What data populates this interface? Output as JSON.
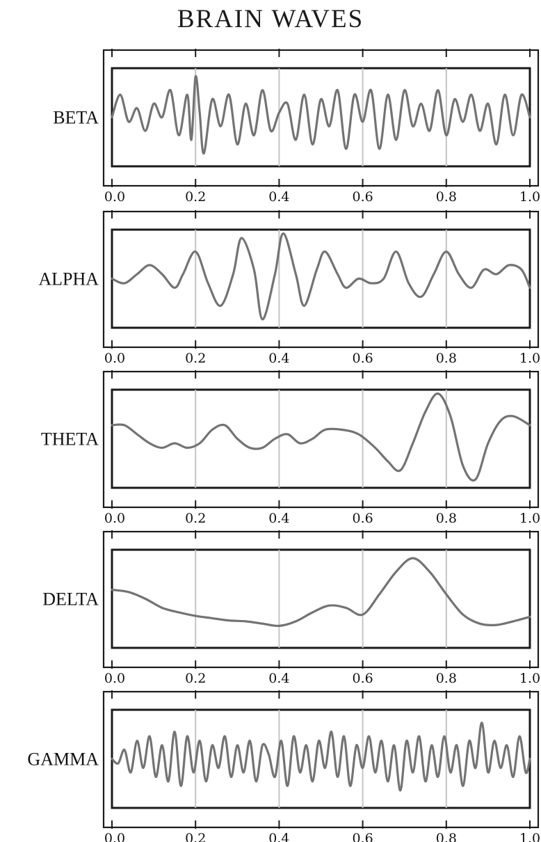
{
  "chart_data": {
    "type": "line",
    "title": "BRAIN WAVES",
    "x_ticks": [
      "0.0",
      "0.2",
      "0.4",
      "0.6",
      "0.8",
      "1.0"
    ],
    "xlim": [
      0,
      1
    ],
    "grid": true,
    "line_color": "#737373",
    "grid_color": "#c4c4c4",
    "frame_color": "#1a1a1a",
    "series": [
      {
        "name": "BETA",
        "x": [
          0.0,
          0.02,
          0.04,
          0.06,
          0.08,
          0.1,
          0.12,
          0.14,
          0.16,
          0.18,
          0.19,
          0.2,
          0.21,
          0.22,
          0.24,
          0.26,
          0.28,
          0.3,
          0.32,
          0.34,
          0.36,
          0.38,
          0.4,
          0.42,
          0.44,
          0.46,
          0.48,
          0.5,
          0.52,
          0.54,
          0.56,
          0.58,
          0.6,
          0.62,
          0.64,
          0.66,
          0.68,
          0.7,
          0.72,
          0.74,
          0.76,
          0.78,
          0.8,
          0.82,
          0.84,
          0.86,
          0.88,
          0.9,
          0.92,
          0.94,
          0.96,
          0.98,
          1.0
        ],
        "y": [
          0.0,
          0.5,
          -0.1,
          0.2,
          -0.3,
          0.3,
          0.0,
          0.6,
          -0.4,
          0.5,
          -0.5,
          0.9,
          0.1,
          -0.8,
          0.4,
          -0.2,
          0.5,
          -0.6,
          0.3,
          -0.4,
          0.6,
          -0.3,
          0.1,
          0.3,
          -0.5,
          0.5,
          -0.6,
          0.4,
          -0.2,
          0.6,
          -0.7,
          0.5,
          -0.1,
          0.6,
          -0.7,
          0.5,
          -0.5,
          0.6,
          -0.2,
          0.3,
          -0.3,
          0.6,
          -0.4,
          0.4,
          -0.1,
          0.5,
          -0.3,
          0.3,
          -0.6,
          0.5,
          -0.4,
          0.5,
          0.0
        ]
      },
      {
        "name": "ALPHA",
        "x": [
          0.0,
          0.03,
          0.06,
          0.09,
          0.12,
          0.15,
          0.17,
          0.2,
          0.23,
          0.26,
          0.29,
          0.31,
          0.34,
          0.36,
          0.39,
          0.41,
          0.44,
          0.46,
          0.49,
          0.51,
          0.54,
          0.56,
          0.59,
          0.62,
          0.65,
          0.68,
          0.71,
          0.74,
          0.77,
          0.8,
          0.83,
          0.86,
          0.89,
          0.92,
          0.95,
          0.98,
          1.0
        ],
        "y": [
          0.0,
          -0.1,
          0.1,
          0.3,
          0.1,
          -0.2,
          0.1,
          0.6,
          -0.1,
          -0.6,
          0.1,
          0.9,
          0.2,
          -0.9,
          0.1,
          1.0,
          0.1,
          -0.6,
          0.2,
          0.6,
          0.1,
          -0.2,
          0.0,
          -0.1,
          0.0,
          0.6,
          -0.1,
          -0.4,
          0.1,
          0.6,
          0.1,
          -0.2,
          0.2,
          0.1,
          0.3,
          0.2,
          -0.2
        ]
      },
      {
        "name": "THETA",
        "x": [
          0.0,
          0.03,
          0.06,
          0.09,
          0.12,
          0.15,
          0.18,
          0.21,
          0.24,
          0.27,
          0.3,
          0.33,
          0.36,
          0.39,
          0.42,
          0.45,
          0.48,
          0.51,
          0.55,
          0.59,
          0.63,
          0.66,
          0.69,
          0.72,
          0.75,
          0.78,
          0.81,
          0.84,
          0.87,
          0.9,
          0.93,
          0.96,
          1.0
        ],
        "y": [
          0.3,
          0.3,
          0.1,
          -0.1,
          -0.2,
          -0.1,
          -0.2,
          -0.1,
          0.2,
          0.3,
          0.0,
          -0.2,
          -0.2,
          0.0,
          0.1,
          -0.1,
          0.0,
          0.2,
          0.2,
          0.1,
          -0.2,
          -0.5,
          -0.7,
          -0.1,
          0.6,
          1.0,
          0.5,
          -0.6,
          -0.9,
          -0.1,
          0.4,
          0.5,
          0.3
        ]
      },
      {
        "name": "DELTA",
        "x": [
          0.0,
          0.04,
          0.08,
          0.12,
          0.16,
          0.2,
          0.24,
          0.28,
          0.32,
          0.36,
          0.4,
          0.44,
          0.48,
          0.52,
          0.56,
          0.6,
          0.64,
          0.68,
          0.72,
          0.76,
          0.8,
          0.84,
          0.88,
          0.92,
          0.96,
          1.0
        ],
        "y": [
          0.2,
          0.15,
          0.0,
          -0.2,
          -0.3,
          -0.38,
          -0.43,
          -0.48,
          -0.5,
          -0.55,
          -0.6,
          -0.5,
          -0.3,
          -0.15,
          -0.2,
          -0.35,
          0.1,
          0.6,
          0.9,
          0.6,
          0.1,
          -0.35,
          -0.55,
          -0.58,
          -0.5,
          -0.4
        ]
      },
      {
        "name": "GAMMA",
        "x": [
          0.0,
          0.015,
          0.03,
          0.045,
          0.06,
          0.075,
          0.09,
          0.105,
          0.12,
          0.135,
          0.15,
          0.165,
          0.18,
          0.195,
          0.21,
          0.225,
          0.24,
          0.255,
          0.27,
          0.285,
          0.3,
          0.315,
          0.33,
          0.345,
          0.36,
          0.375,
          0.39,
          0.405,
          0.42,
          0.435,
          0.45,
          0.465,
          0.48,
          0.495,
          0.51,
          0.525,
          0.54,
          0.555,
          0.57,
          0.585,
          0.6,
          0.615,
          0.63,
          0.645,
          0.66,
          0.675,
          0.69,
          0.705,
          0.72,
          0.735,
          0.75,
          0.765,
          0.78,
          0.795,
          0.81,
          0.825,
          0.84,
          0.855,
          0.87,
          0.885,
          0.9,
          0.915,
          0.93,
          0.945,
          0.96,
          0.975,
          0.99,
          1.0
        ],
        "y": [
          0.0,
          -0.1,
          0.2,
          -0.3,
          0.4,
          -0.2,
          0.5,
          -0.4,
          0.3,
          -0.5,
          0.6,
          -0.6,
          0.5,
          -0.3,
          0.4,
          -0.5,
          0.3,
          -0.2,
          0.5,
          -0.4,
          0.3,
          -0.3,
          0.4,
          -0.5,
          0.3,
          0.1,
          -0.4,
          0.4,
          -0.6,
          0.5,
          -0.3,
          0.3,
          -0.5,
          0.4,
          -0.2,
          0.6,
          -0.4,
          0.5,
          -0.6,
          0.3,
          -0.2,
          0.5,
          -0.3,
          0.4,
          -0.5,
          0.3,
          -0.7,
          0.4,
          -0.3,
          0.5,
          -0.5,
          0.3,
          -0.4,
          0.5,
          -0.3,
          0.3,
          -0.6,
          0.4,
          -0.2,
          0.8,
          -0.3,
          0.4,
          -0.2,
          0.3,
          -0.4,
          0.5,
          -0.3,
          0.0
        ]
      }
    ]
  }
}
